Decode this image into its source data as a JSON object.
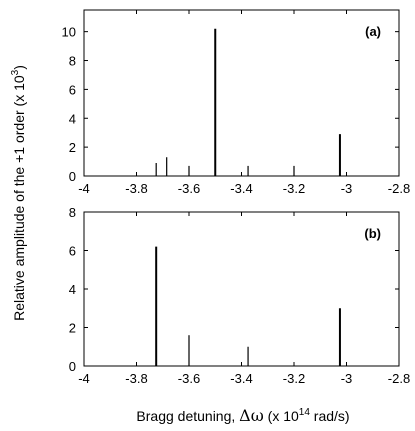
{
  "chart_data": [
    {
      "type": "bar",
      "panel_label": "(a)",
      "x": [
        -3.725,
        -3.685,
        -3.6,
        -3.5,
        -3.375,
        -3.2,
        -3.025
      ],
      "values": [
        0.9,
        1.3,
        0.7,
        10.2,
        0.7,
        0.7,
        2.9
      ],
      "xlim": [
        -4,
        -2.8
      ],
      "ylim": [
        0,
        11.5
      ],
      "xticks": [
        "-4",
        "-3.8",
        "-3.6",
        "-3.4",
        "-3.2",
        "-3",
        "-2.8"
      ],
      "yticks": [
        "0",
        "2",
        "4",
        "6",
        "8",
        "10"
      ],
      "grid": false
    },
    {
      "type": "bar",
      "panel_label": "(b)",
      "x": [
        -3.725,
        -3.6,
        -3.375,
        -3.025
      ],
      "values": [
        6.2,
        1.6,
        1.0,
        3.0
      ],
      "xlim": [
        -4,
        -2.8
      ],
      "ylim": [
        0,
        8
      ],
      "xticks": [
        "-4",
        "-3.8",
        "-3.6",
        "-3.4",
        "-3.2",
        "-3",
        "-2.8"
      ],
      "yticks": [
        "0",
        "2",
        "4",
        "6",
        "8"
      ],
      "grid": false
    }
  ],
  "ylabel_main": "Relative amplitude of the +1 order (x 10",
  "ylabel_exp": "3",
  "ylabel_close": ")",
  "xlabel_main": "Bragg detuning, ",
  "xlabel_symbol": "Δω",
  "xlabel_units_pre": " (x 10",
  "xlabel_exp": "14",
  "xlabel_units_post": " rad/s)"
}
